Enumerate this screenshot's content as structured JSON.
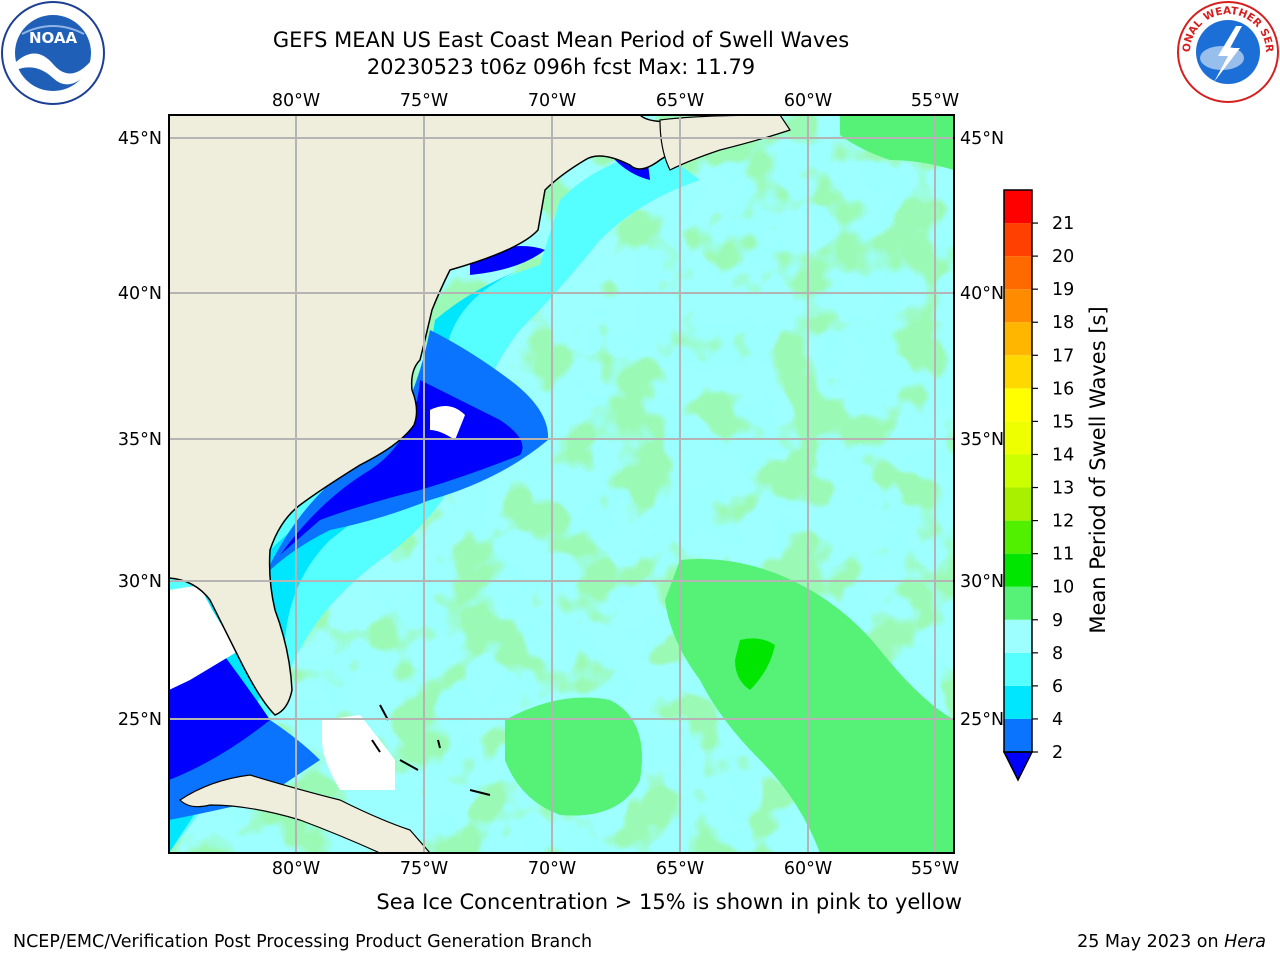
{
  "title": {
    "line1": "GEFS MEAN US East Coast Mean Period of Swell Waves",
    "line2": "20230523 t06z 096h fcst   Max: 11.79"
  },
  "map": {
    "region": "US East Coast",
    "lon_labels": [
      "80°W",
      "75°W",
      "70°W",
      "65°W",
      "60°W",
      "55°W"
    ],
    "lat_labels": [
      "45°N",
      "40°N",
      "35°N",
      "30°N",
      "25°N"
    ],
    "land_color": "#efeedd",
    "ice_free_missing_color": "#ffffff"
  },
  "colorbar": {
    "label": "Mean Period of Swell Waves [s]",
    "tick_labels": [
      "2",
      "4",
      "6",
      "8",
      "9",
      "10",
      "11",
      "12",
      "13",
      "14",
      "15",
      "16",
      "17",
      "18",
      "19",
      "20",
      "21"
    ],
    "extend": "min",
    "under_color": "#0000ff",
    "colors": [
      "#0a74ff",
      "#00e6ff",
      "#55ffff",
      "#9dffff",
      "#55f277",
      "#00e600",
      "#50f000",
      "#a8f000",
      "#ccff00",
      "#eeff00",
      "#ffff00",
      "#ffd800",
      "#ffb600",
      "#ff8c00",
      "#ff6a00",
      "#ff4000",
      "#ff0000"
    ]
  },
  "notes": {
    "ice": "Sea Ice Concentration > 15% is shown in pink to yellow"
  },
  "footer": {
    "credit": "NCEP/EMC/Verification Post Processing Product Generation Branch",
    "date_prefix": "25 May 2023 on ",
    "machine": "Hera"
  },
  "logos": {
    "left": "noaa-logo",
    "right": "national-weather-service-logo",
    "left_text": "NOAA",
    "right_text": "NATIONAL WEATHER SERVICE"
  }
}
